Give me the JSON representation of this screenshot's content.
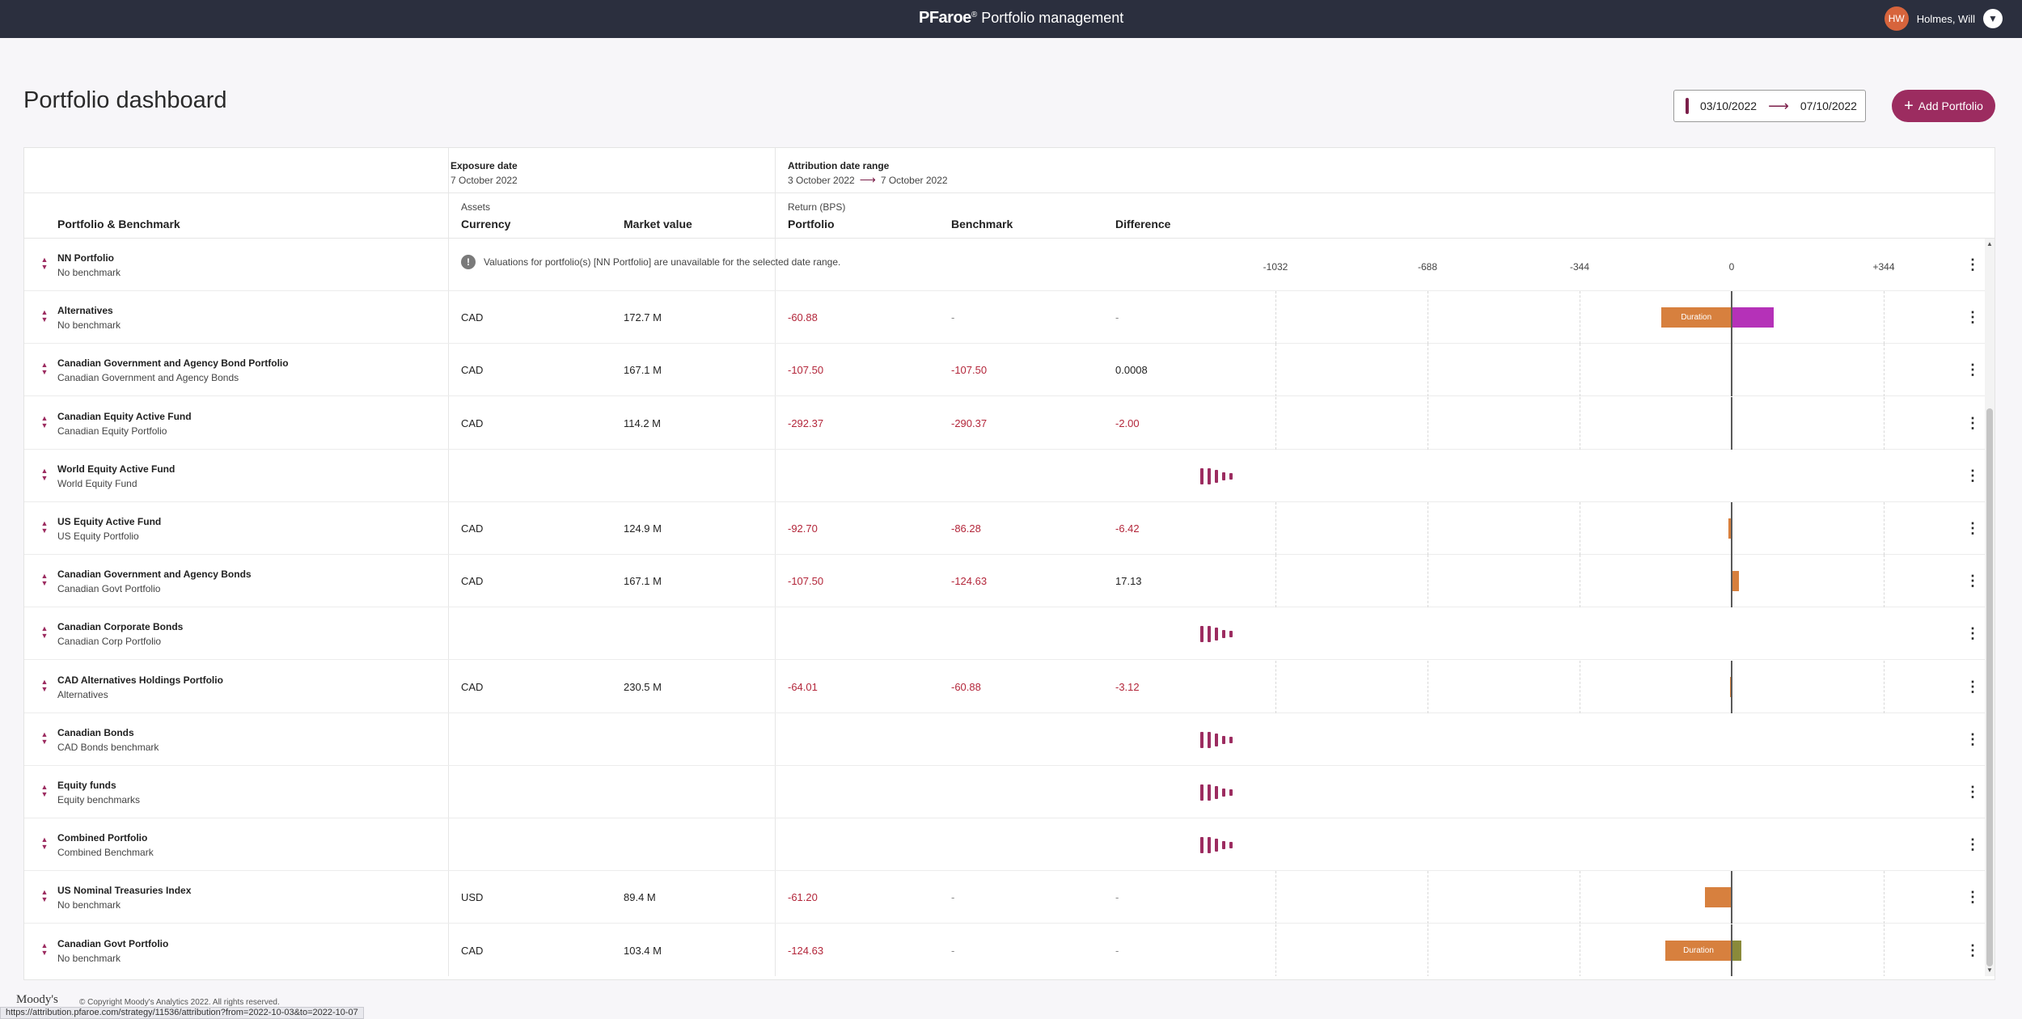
{
  "app": {
    "brand_logo": "PFaroe",
    "brand_suffix": "Portfolio management",
    "user_initials": "HW",
    "user_name": "Holmes, Will"
  },
  "page": {
    "title": "Portfolio dashboard",
    "date_from": "03/10/2022",
    "date_to": "07/10/2022",
    "add_label": "Add Portfolio"
  },
  "table": {
    "exposure_label": "Exposure date",
    "exposure_date": "7 October 2022",
    "attr_label": "Attribution date range",
    "attr_from": "3 October 2022",
    "attr_to": "7 October 2022",
    "col_portfolio_benchmark": "Portfolio & Benchmark",
    "col_assets": "Assets",
    "col_currency": "Currency",
    "col_market_value": "Market value",
    "col_return": "Return (BPS)",
    "col_portfolio": "Portfolio",
    "col_benchmark": "Benchmark",
    "col_difference": "Difference",
    "axis_ticks": [
      "-1032",
      "-688",
      "-344",
      "0",
      "+344"
    ],
    "axis_values": [
      -1032,
      -688,
      -344,
      0,
      344
    ]
  },
  "rows": [
    {
      "name": "NN Portfolio",
      "benchmark": "No benchmark",
      "type": "info",
      "info": "Valuations for portfolio(s) [NN Portfolio] are unavailable for the selected date range."
    },
    {
      "name": "Alternatives",
      "benchmark": "No benchmark",
      "type": "data",
      "currency": "CAD",
      "market_value": "172.7 M",
      "portfolio": "-60.88",
      "bench": "-",
      "diff": "-",
      "bars": [
        {
          "start": -160,
          "end": 0,
          "color": "#d7803e",
          "label": "Duration"
        },
        {
          "start": 0,
          "end": 95,
          "color": "#b531b8",
          "label": ""
        }
      ]
    },
    {
      "name": "Canadian Government and Agency Bond Portfolio",
      "benchmark": "Canadian Government and Agency Bonds",
      "type": "data",
      "currency": "CAD",
      "market_value": "167.1 M",
      "portfolio": "-107.50",
      "bench": "-107.50",
      "diff": "0.0008",
      "bars": []
    },
    {
      "name": "Canadian Equity Active Fund",
      "benchmark": "Canadian Equity Portfolio",
      "type": "data",
      "currency": "CAD",
      "market_value": "114.2 M",
      "portfolio": "-292.37",
      "bench": "-290.37",
      "diff": "-2.00",
      "bars": []
    },
    {
      "name": "World Equity Active Fund",
      "benchmark": "World Equity Fund",
      "type": "loading"
    },
    {
      "name": "US Equity Active Fund",
      "benchmark": "US Equity Portfolio",
      "type": "data",
      "currency": "CAD",
      "market_value": "124.9 M",
      "portfolio": "-92.70",
      "bench": "-86.28",
      "diff": "-6.42",
      "bars": [
        {
          "start": -6.42,
          "end": 0,
          "color": "#d7803e",
          "label": ""
        }
      ]
    },
    {
      "name": "Canadian Government and Agency Bonds",
      "benchmark": "Canadian Govt Portfolio",
      "type": "data",
      "currency": "CAD",
      "market_value": "167.1 M",
      "portfolio": "-107.50",
      "bench": "-124.63",
      "diff": "17.13",
      "bars": [
        {
          "start": 0,
          "end": 17.13,
          "color": "#d7803e",
          "label": ""
        }
      ]
    },
    {
      "name": "Canadian Corporate Bonds",
      "benchmark": "Canadian Corp Portfolio",
      "type": "loading"
    },
    {
      "name": "CAD Alternatives Holdings Portfolio",
      "benchmark": "Alternatives",
      "type": "data",
      "currency": "CAD",
      "market_value": "230.5 M",
      "portfolio": "-64.01",
      "bench": "-60.88",
      "diff": "-3.12",
      "bars": [
        {
          "start": -4,
          "end": 0,
          "color": "#d7803e",
          "label": ""
        }
      ]
    },
    {
      "name": "Canadian Bonds",
      "benchmark": "CAD Bonds benchmark",
      "type": "loading"
    },
    {
      "name": "Equity funds",
      "benchmark": "Equity benchmarks",
      "type": "loading"
    },
    {
      "name": "Combined Portfolio",
      "benchmark": "Combined Benchmark",
      "type": "loading"
    },
    {
      "name": "US Nominal Treasuries Index",
      "benchmark": "No benchmark",
      "type": "data",
      "currency": "USD",
      "market_value": "89.4 M",
      "portfolio": "-61.20",
      "bench": "-",
      "diff": "-",
      "bars": [
        {
          "start": -61.2,
          "end": 0,
          "color": "#d7803e",
          "label": ""
        }
      ]
    },
    {
      "name": "Canadian Govt Portfolio",
      "benchmark": "No benchmark",
      "type": "data",
      "currency": "CAD",
      "market_value": "103.4 M",
      "portfolio": "-124.63",
      "bench": "-",
      "diff": "-",
      "bars": [
        {
          "start": -150,
          "end": 0,
          "color": "#d7803e",
          "label": "Duration"
        },
        {
          "start": 0,
          "end": 22,
          "color": "#8a8a3a",
          "label": ""
        }
      ]
    }
  ],
  "footer": {
    "logo": "Moody's",
    "copyright": "© Copyright Moody's Analytics 2022. All rights reserved.",
    "status_url": "https://attribution.pfaroe.com/strategy/11536/attribution?from=2022-10-03&to=2022-10-07"
  },
  "colors": {
    "accent": "#9c2c60",
    "negative": "#b3263a",
    "bar_orange": "#d7803e",
    "bar_purple": "#b531b8"
  }
}
